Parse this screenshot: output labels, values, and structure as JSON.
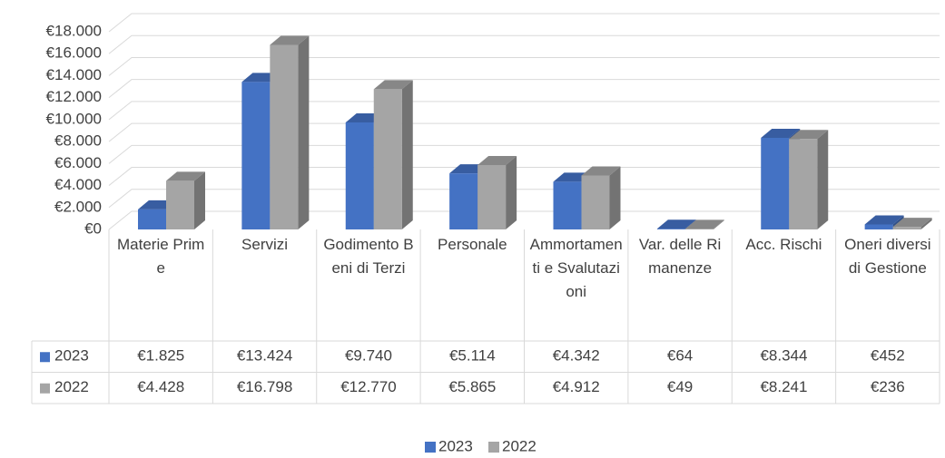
{
  "chart_data": {
    "type": "bar3d",
    "categories": [
      "Materie Prime",
      "Servizi",
      "Godimento Beni di Terzi",
      "Personale",
      "Ammortamenti e Svalutazioni",
      "Var. delle Rimanenze",
      "Acc. Rischi",
      "Oneri diversi di Gestione"
    ],
    "series": [
      {
        "name": "2023",
        "color": "#4472c4",
        "values": [
          1825,
          13424,
          9740,
          5114,
          4342,
          64,
          8344,
          452
        ],
        "value_labels": [
          "€1.825",
          "€13.424",
          "€9.740",
          "€5.114",
          "€4.342",
          "€64",
          "€8.344",
          "€452"
        ]
      },
      {
        "name": "2022",
        "color": "#a5a5a5",
        "values": [
          4428,
          16798,
          12770,
          5865,
          4912,
          49,
          8241,
          236
        ],
        "value_labels": [
          "€4.428",
          "€16.798",
          "€12.770",
          "€5.865",
          "€4.912",
          "€49",
          "€8.241",
          "€236"
        ]
      }
    ],
    "ylim": [
      0,
      18000
    ],
    "yticks": [
      {
        "value": 0,
        "label": "€0"
      },
      {
        "value": 2000,
        "label": "€2.000"
      },
      {
        "value": 4000,
        "label": "€4.000"
      },
      {
        "value": 6000,
        "label": "€6.000"
      },
      {
        "value": 8000,
        "label": "€8.000"
      },
      {
        "value": 10000,
        "label": "€10.000"
      },
      {
        "value": 12000,
        "label": "€12.000"
      },
      {
        "value": 14000,
        "label": "€14.000"
      },
      {
        "value": 16000,
        "label": "€16.000"
      },
      {
        "value": 18000,
        "label": "€18.000"
      }
    ],
    "grid": true,
    "data_table": true,
    "legend": "bottom"
  }
}
